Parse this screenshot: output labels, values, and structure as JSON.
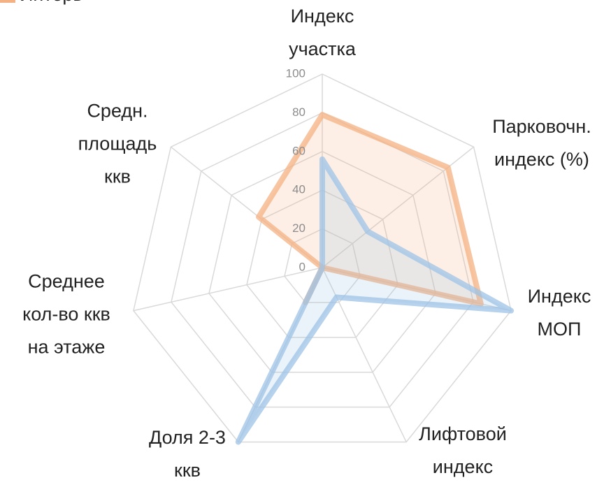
{
  "chart_data": {
    "type": "radar",
    "categories": [
      "Индекс\nучастка",
      "Парковочн.\nиндекс (%)",
      "Индекс\nМОП",
      "Лифтовой\nиндекс",
      "Доля 2-3\nккв",
      "Среднее\nкол-во ккв\nна этаже",
      "Средн.\nплощадь\nккв"
    ],
    "series": [
      {
        "name": "Интерь",
        "color": "#f4b183",
        "values": [
          79,
          83,
          84,
          0,
          20,
          0,
          42
        ]
      },
      {
        "color": "#9dc3e6",
        "values": [
          56,
          30,
          100,
          17,
          100,
          0,
          0
        ]
      }
    ],
    "ylim": [
      0,
      100
    ],
    "yticks": [
      0,
      20,
      40,
      60,
      80,
      100
    ],
    "grid": true
  }
}
